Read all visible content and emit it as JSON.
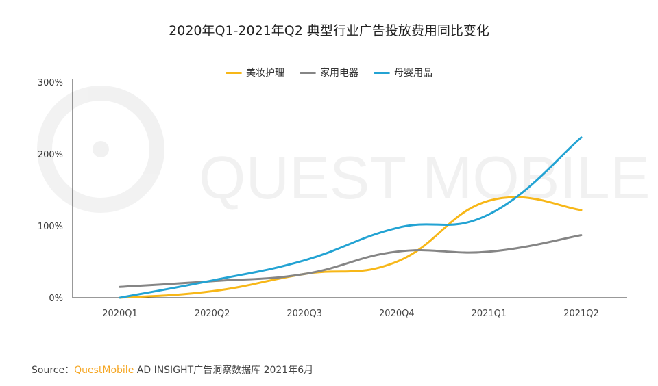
{
  "chart_data": {
    "type": "line",
    "title": "2020年Q1-2021年Q2 典型行业广告投放费用同比变化",
    "categories": [
      "2020Q1",
      "2020Q2",
      "2020Q3",
      "2020Q4",
      "2021Q1",
      "2021Q2"
    ],
    "ylim": [
      0,
      300
    ],
    "yticks": [
      "0%",
      "100%",
      "200%",
      "300%"
    ],
    "ytick_values": [
      0,
      100,
      200,
      300
    ],
    "legend_position": "top",
    "grid": false,
    "series": [
      {
        "name": "美妆护理",
        "color": "#f7b718",
        "values": [
          0,
          9,
          33,
          50,
          135,
          122
        ]
      },
      {
        "name": "家用电器",
        "color": "#858585",
        "values": [
          15,
          23,
          33,
          64,
          64,
          87
        ]
      },
      {
        "name": "母婴用品",
        "color": "#23a3d3",
        "values": [
          0,
          24,
          52,
          97,
          116,
          223
        ]
      }
    ]
  },
  "watermark": "QUEST MOBILE",
  "source": {
    "label": "Source：",
    "brand": "QuestMobile",
    "text": " AD INSIGHT广告洞察数据库 2021年6月"
  }
}
